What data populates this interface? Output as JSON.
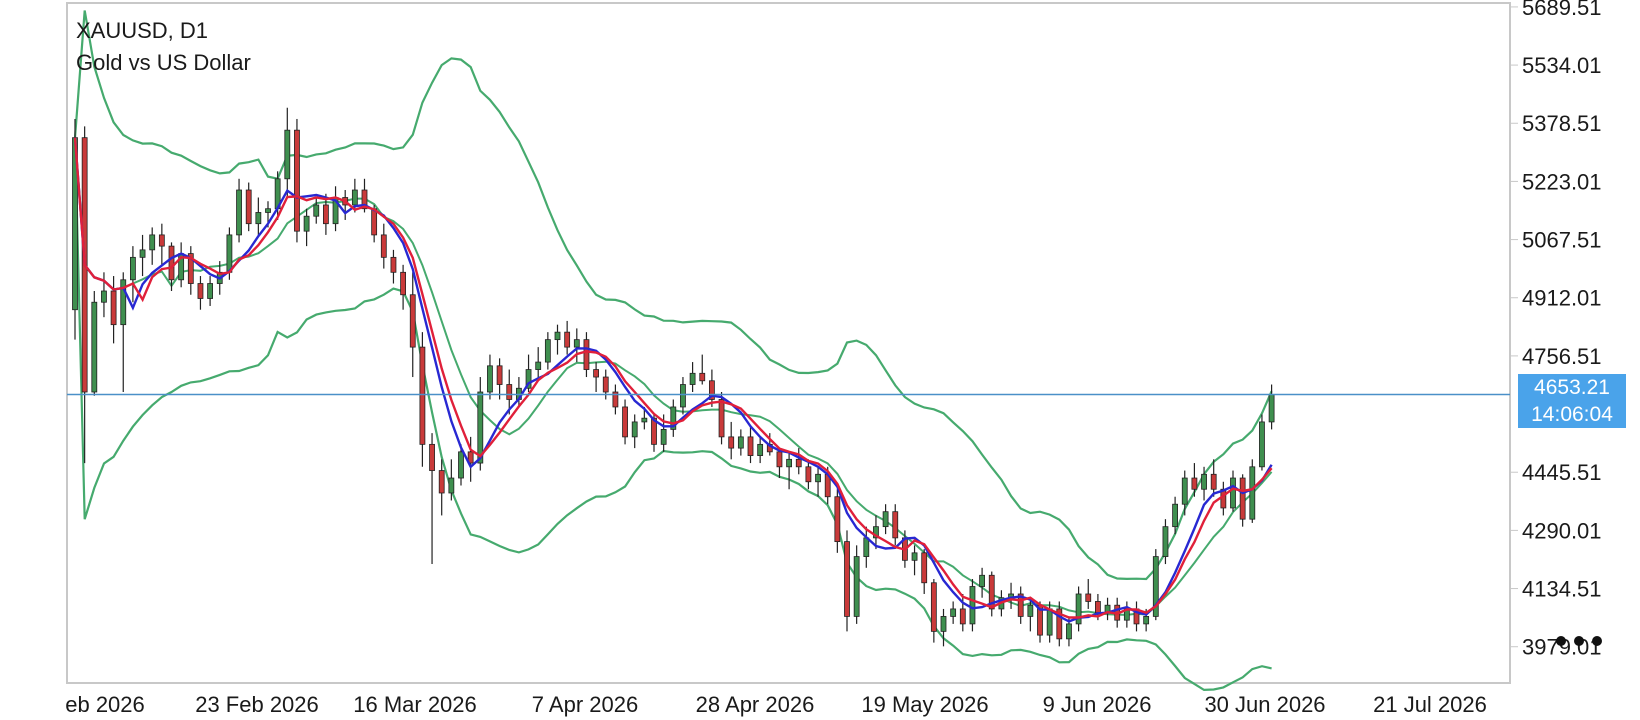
{
  "header": {
    "symbol_line": "XAUUSD, D1",
    "name_line": "Gold vs US Dollar"
  },
  "current": {
    "price": "4653.21",
    "countdown": "14:06:04"
  },
  "menu_icon": "more-dots-icon",
  "colors": {
    "bull": "#3f8f4f",
    "bear": "#c93a3a",
    "wick": "#222222",
    "bands": "#46aa6e",
    "ma_red": "#e0203a",
    "ma_blue": "#2828d2",
    "price_line": "#4a90c8",
    "price_box": "#4aa3ea",
    "frame": "#c8c8c8"
  },
  "chart_data": {
    "type": "candlestick",
    "title": "XAUUSD, D1",
    "subtitle": "Gold vs US Dollar",
    "y_tick_labels": [
      "5689.51",
      "5534.01",
      "5378.51",
      "5223.01",
      "5067.51",
      "4912.01",
      "4756.51",
      "4445.51",
      "4290.01",
      "4134.51",
      "3979.01"
    ],
    "ylim": [
      3882,
      5700
    ],
    "x_tick_labels": [
      "eb 2026",
      "23 Feb 2026",
      "16 Mar 2026",
      "7 Apr 2026",
      "28 Apr 2026",
      "19 May 2026",
      "9 Jun 2026",
      "30 Jun 2026",
      "21 Jul 2026"
    ],
    "current_price": 4653.21,
    "ohlc_approx": [
      [
        4880,
        5390,
        4800,
        5340
      ],
      [
        5340,
        5370,
        4470,
        4660
      ],
      [
        4660,
        4930,
        4650,
        4900
      ],
      [
        4900,
        4980,
        4860,
        4930
      ],
      [
        4930,
        4970,
        4790,
        4840
      ],
      [
        4840,
        4980,
        4660,
        4960
      ],
      [
        4960,
        5050,
        4900,
        5020
      ],
      [
        5020,
        5080,
        4970,
        5040
      ],
      [
        5040,
        5100,
        5000,
        5080
      ],
      [
        5080,
        5110,
        5000,
        5050
      ],
      [
        5050,
        5060,
        4930,
        4960
      ],
      [
        4960,
        5060,
        4940,
        5030
      ],
      [
        5030,
        5050,
        4920,
        4950
      ],
      [
        4950,
        4970,
        4880,
        4910
      ],
      [
        4910,
        4970,
        4890,
        4950
      ],
      [
        4950,
        5010,
        4920,
        4980
      ],
      [
        4980,
        5100,
        4960,
        5080
      ],
      [
        5080,
        5230,
        5060,
        5200
      ],
      [
        5200,
        5220,
        5090,
        5110
      ],
      [
        5110,
        5180,
        5080,
        5140
      ],
      [
        5140,
        5170,
        5100,
        5150
      ],
      [
        5150,
        5250,
        5120,
        5230
      ],
      [
        5230,
        5420,
        5180,
        5360
      ],
      [
        5360,
        5390,
        5060,
        5090
      ],
      [
        5090,
        5150,
        5050,
        5130
      ],
      [
        5130,
        5180,
        5110,
        5160
      ],
      [
        5160,
        5190,
        5080,
        5110
      ],
      [
        5110,
        5210,
        5090,
        5180
      ],
      [
        5180,
        5200,
        5120,
        5160
      ],
      [
        5160,
        5230,
        5140,
        5200
      ],
      [
        5200,
        5230,
        5140,
        5150
      ],
      [
        5150,
        5160,
        5060,
        5080
      ],
      [
        5080,
        5110,
        4990,
        5020
      ],
      [
        5020,
        5040,
        4950,
        4980
      ],
      [
        4980,
        5000,
        4880,
        4920
      ],
      [
        4920,
        4980,
        4700,
        4780
      ],
      [
        4780,
        4820,
        4460,
        4520
      ],
      [
        4520,
        4550,
        4200,
        4450
      ],
      [
        4450,
        4480,
        4330,
        4390
      ],
      [
        4390,
        4480,
        4370,
        4430
      ],
      [
        4430,
        4520,
        4410,
        4500
      ],
      [
        4500,
        4540,
        4420,
        4470
      ],
      [
        4470,
        4700,
        4450,
        4660
      ],
      [
        4660,
        4760,
        4640,
        4730
      ],
      [
        4730,
        4750,
        4640,
        4680
      ],
      [
        4680,
        4720,
        4600,
        4640
      ],
      [
        4640,
        4700,
        4620,
        4670
      ],
      [
        4670,
        4760,
        4660,
        4720
      ],
      [
        4720,
        4780,
        4690,
        4740
      ],
      [
        4740,
        4820,
        4720,
        4800
      ],
      [
        4800,
        4840,
        4760,
        4820
      ],
      [
        4820,
        4850,
        4760,
        4780
      ],
      [
        4780,
        4830,
        4740,
        4800
      ],
      [
        4800,
        4820,
        4700,
        4720
      ],
      [
        4720,
        4740,
        4660,
        4700
      ],
      [
        4700,
        4720,
        4640,
        4660
      ],
      [
        4660,
        4680,
        4600,
        4620
      ],
      [
        4620,
        4640,
        4520,
        4540
      ],
      [
        4540,
        4600,
        4510,
        4580
      ],
      [
        4580,
        4620,
        4560,
        4590
      ],
      [
        4590,
        4600,
        4500,
        4520
      ],
      [
        4520,
        4600,
        4500,
        4560
      ],
      [
        4560,
        4640,
        4540,
        4620
      ],
      [
        4620,
        4700,
        4600,
        4680
      ],
      [
        4680,
        4740,
        4660,
        4710
      ],
      [
        4710,
        4760,
        4680,
        4690
      ],
      [
        4690,
        4720,
        4620,
        4640
      ],
      [
        4640,
        4660,
        4520,
        4540
      ],
      [
        4540,
        4580,
        4480,
        4510
      ],
      [
        4510,
        4560,
        4490,
        4540
      ],
      [
        4540,
        4570,
        4470,
        4490
      ],
      [
        4490,
        4540,
        4470,
        4520
      ],
      [
        4520,
        4550,
        4490,
        4500
      ],
      [
        4500,
        4510,
        4430,
        4460
      ],
      [
        4460,
        4500,
        4400,
        4480
      ],
      [
        4480,
        4510,
        4440,
        4460
      ],
      [
        4460,
        4480,
        4400,
        4420
      ],
      [
        4420,
        4460,
        4380,
        4440
      ],
      [
        4440,
        4460,
        4360,
        4380
      ],
      [
        4380,
        4400,
        4230,
        4260
      ],
      [
        4260,
        4290,
        4020,
        4060
      ],
      [
        4060,
        4250,
        4040,
        4220
      ],
      [
        4220,
        4300,
        4190,
        4270
      ],
      [
        4270,
        4330,
        4240,
        4300
      ],
      [
        4300,
        4360,
        4280,
        4340
      ],
      [
        4340,
        4360,
        4250,
        4270
      ],
      [
        4270,
        4290,
        4190,
        4210
      ],
      [
        4210,
        4250,
        4170,
        4230
      ],
      [
        4230,
        4240,
        4120,
        4150
      ],
      [
        4150,
        4160,
        3990,
        4020
      ],
      [
        4020,
        4080,
        3980,
        4060
      ],
      [
        4060,
        4100,
        4040,
        4080
      ],
      [
        4080,
        4120,
        4020,
        4040
      ],
      [
        4040,
        4160,
        4020,
        4140
      ],
      [
        4140,
        4190,
        4110,
        4170
      ],
      [
        4170,
        4180,
        4060,
        4080
      ],
      [
        4080,
        4130,
        4060,
        4110
      ],
      [
        4110,
        4150,
        4080,
        4120
      ],
      [
        4120,
        4140,
        4040,
        4060
      ],
      [
        4060,
        4110,
        4020,
        4090
      ],
      [
        4090,
        4100,
        3990,
        4010
      ],
      [
        4010,
        4100,
        3990,
        4080
      ],
      [
        4080,
        4100,
        3980,
        4000
      ],
      [
        4000,
        4060,
        3980,
        4040
      ],
      [
        4040,
        4140,
        4020,
        4120
      ],
      [
        4120,
        4160,
        4080,
        4100
      ],
      [
        4100,
        4120,
        4050,
        4070
      ],
      [
        4070,
        4110,
        4050,
        4090
      ],
      [
        4090,
        4110,
        4030,
        4050
      ],
      [
        4050,
        4100,
        4030,
        4080
      ],
      [
        4080,
        4100,
        4020,
        4040
      ],
      [
        4040,
        4080,
        4020,
        4060
      ],
      [
        4060,
        4240,
        4050,
        4220
      ],
      [
        4220,
        4320,
        4200,
        4300
      ],
      [
        4300,
        4380,
        4280,
        4360
      ],
      [
        4360,
        4450,
        4330,
        4430
      ],
      [
        4430,
        4470,
        4380,
        4400
      ],
      [
        4400,
        4460,
        4370,
        4440
      ],
      [
        4440,
        4480,
        4380,
        4400
      ],
      [
        4400,
        4420,
        4330,
        4350
      ],
      [
        4350,
        4450,
        4340,
        4430
      ],
      [
        4430,
        4440,
        4300,
        4320
      ],
      [
        4320,
        4480,
        4310,
        4460
      ],
      [
        4460,
        4600,
        4450,
        4580
      ],
      [
        4580,
        4680,
        4560,
        4653
      ]
    ]
  }
}
